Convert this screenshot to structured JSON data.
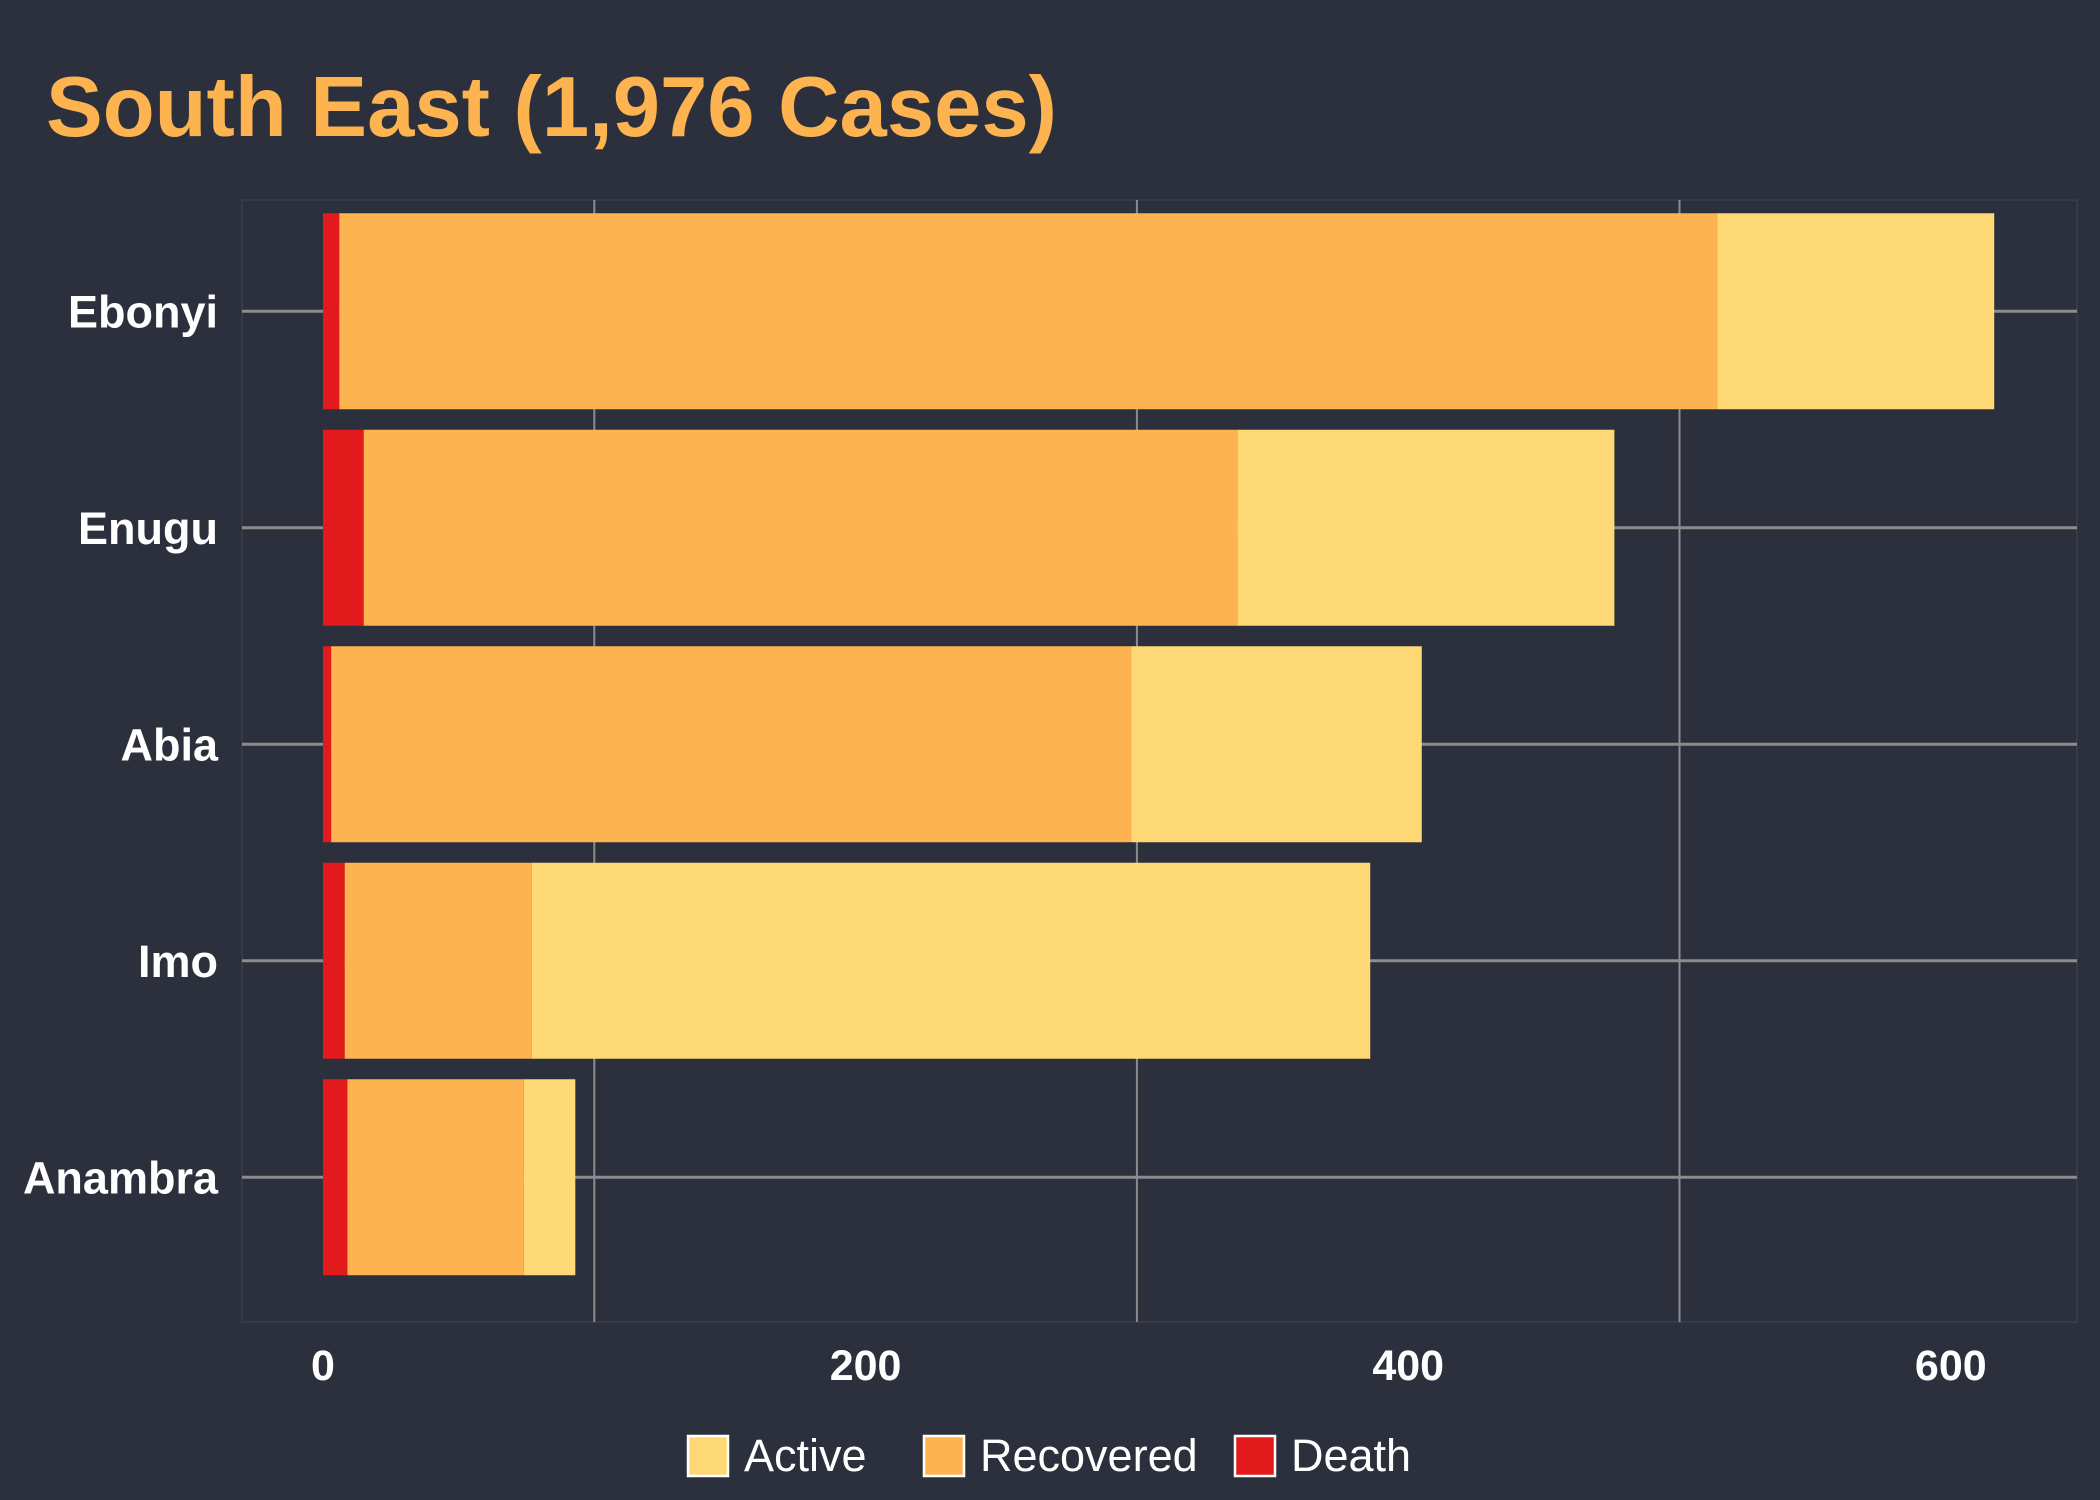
{
  "chart_data": {
    "type": "bar",
    "orientation": "horizontal",
    "stacked": true,
    "title": "South East (1,976 Cases)",
    "categories": [
      "Ebonyi",
      "Enugu",
      "Abia",
      "Imo",
      "Anambra"
    ],
    "series": [
      {
        "name": "Death",
        "values": [
          6,
          15,
          3,
          8,
          9
        ]
      },
      {
        "name": "Recovered",
        "values": [
          508,
          322,
          295,
          69,
          65
        ]
      },
      {
        "name": "Active",
        "values": [
          102,
          139,
          107,
          309,
          19
        ]
      }
    ],
    "xlim": [
      -30,
      647
    ],
    "xticks": [
      0,
      200,
      400,
      600
    ],
    "minor_gridlines": [
      100,
      300,
      500
    ],
    "grid": true,
    "legend": {
      "position": "bottom",
      "order": [
        "Active",
        "Recovered",
        "Death"
      ]
    },
    "colors": {
      "background": "#2b303c",
      "title": "#fdb34f",
      "Active": "#ffd976",
      "Recovered": "#fdb34f",
      "Death": "#e31a1c",
      "grid": "#8c8c8c"
    }
  }
}
